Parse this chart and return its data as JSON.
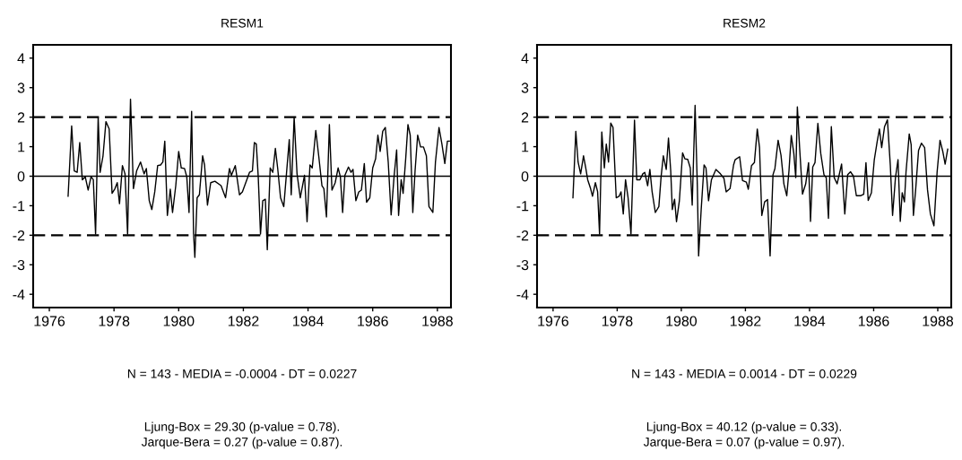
{
  "chart_data": [
    {
      "type": "line",
      "title": "RESM1",
      "xlim": [
        1975.5,
        1988.42
      ],
      "ylim": [
        -4.45,
        4.45
      ],
      "xticks": [
        1976,
        1978,
        1980,
        1982,
        1984,
        1986,
        1988
      ],
      "yticks": [
        -4,
        -3,
        -2,
        -1,
        0,
        1,
        2,
        3,
        4
      ],
      "grid": false,
      "ref_lines": [
        {
          "axis": "y",
          "value": 0,
          "label": null,
          "color": "#000000",
          "line_style": "solid"
        },
        {
          "axis": "y",
          "value": 2,
          "label": null,
          "color": "#000000",
          "line_style": "dashed"
        },
        {
          "axis": "y",
          "value": -2,
          "label": null,
          "color": "#000000",
          "line_style": "dashed"
        }
      ],
      "annotations": [
        "N = 143 - MEDIA = -0.0004 - DT = 0.0227",
        "Ljung-Box = 29.30 (p-value = 0.78).",
        "Jarque-Bera = 0.27 (p-value = 0.87)."
      ],
      "series": [
        {
          "color": "#000000",
          "line_style": "solid",
          "marker": "none",
          "x": [
            1976.58,
            1976.69,
            1976.77,
            1976.86,
            1976.94,
            1977.02,
            1977.11,
            1977.2,
            1977.29,
            1977.36,
            1977.43,
            1977.51,
            1977.57,
            1977.66,
            1977.75,
            1977.85,
            1977.94,
            1978.03,
            1978.1,
            1978.17,
            1978.26,
            1978.34,
            1978.42,
            1978.51,
            1978.6,
            1978.7,
            1978.82,
            1978.93,
            1979.0,
            1979.09,
            1979.17,
            1979.26,
            1979.35,
            1979.44,
            1979.51,
            1979.57,
            1979.65,
            1979.74,
            1979.81,
            1979.91,
            1980.0,
            1980.08,
            1980.18,
            1980.25,
            1980.32,
            1980.4,
            1980.46,
            1980.5,
            1980.57,
            1980.64,
            1980.74,
            1980.8,
            1980.89,
            1980.99,
            1981.12,
            1981.31,
            1981.45,
            1981.57,
            1981.63,
            1981.75,
            1981.88,
            1981.97,
            1982.19,
            1982.28,
            1982.34,
            1982.4,
            1982.46,
            1982.53,
            1982.6,
            1982.68,
            1982.74,
            1982.83,
            1982.91,
            1982.99,
            1983.06,
            1983.15,
            1983.25,
            1983.34,
            1983.42,
            1983.48,
            1983.57,
            1983.66,
            1983.76,
            1983.89,
            1983.97,
            1984.06,
            1984.13,
            1984.24,
            1984.33,
            1984.43,
            1984.49,
            1984.57,
            1984.66,
            1984.74,
            1984.84,
            1984.93,
            1985.0,
            1985.07,
            1985.14,
            1985.25,
            1985.33,
            1985.39,
            1985.48,
            1985.57,
            1985.65,
            1985.74,
            1985.81,
            1985.91,
            1986.0,
            1986.09,
            1986.16,
            1986.23,
            1986.31,
            1986.39,
            1986.48,
            1986.57,
            1986.66,
            1986.74,
            1986.8,
            1986.88,
            1986.94,
            1987.02,
            1987.09,
            1987.16,
            1987.24,
            1987.31,
            1987.39,
            1987.48,
            1987.57,
            1987.66,
            1987.74,
            1987.86,
            1987.94,
            1988.05,
            1988.14,
            1988.23,
            1988.31,
            1988.37
          ],
          "values": [
            -0.68,
            1.7,
            0.18,
            0.13,
            1.14,
            -0.12,
            -0.02,
            -0.47,
            -0.02,
            -0.12,
            -1.96,
            2.0,
            0.13,
            0.69,
            1.85,
            1.6,
            -0.58,
            -0.42,
            -0.22,
            -0.93,
            0.36,
            0.08,
            -1.96,
            2.61,
            -0.42,
            0.18,
            0.48,
            0.08,
            0.26,
            -0.83,
            -1.13,
            -0.53,
            0.36,
            0.38,
            0.48,
            1.19,
            -1.33,
            -0.44,
            -1.23,
            -0.32,
            0.84,
            0.28,
            0.26,
            -0.02,
            -1.23,
            2.2,
            -1.94,
            -2.75,
            -0.73,
            -0.63,
            0.69,
            0.38,
            -0.98,
            -0.22,
            -0.17,
            -0.32,
            -0.73,
            0.26,
            0.03,
            0.36,
            -0.63,
            -0.53,
            0.13,
            0.18,
            1.14,
            1.09,
            -0.02,
            -1.96,
            -0.83,
            -0.78,
            -2.49,
            0.28,
            0.13,
            0.94,
            0.28,
            -0.73,
            -1.03,
            0.18,
            1.24,
            -0.63,
            2.0,
            0.08,
            -0.73,
            0.03,
            -1.54,
            0.38,
            0.28,
            1.55,
            0.69,
            -0.32,
            -0.42,
            -1.38,
            1.75,
            -0.47,
            -0.22,
            0.28,
            -0.02,
            -1.23,
            0.03,
            0.31,
            0.13,
            0.23,
            -0.83,
            -0.53,
            -0.47,
            0.43,
            -0.88,
            -0.73,
            0.28,
            0.59,
            1.39,
            0.84,
            1.52,
            1.65,
            0.48,
            -1.31,
            -0.02,
            0.89,
            -1.33,
            -0.12,
            -0.58,
            0.59,
            1.75,
            1.39,
            -1.23,
            0.18,
            1.39,
            0.99,
            0.99,
            0.69,
            -1.03,
            -1.23,
            0.48,
            1.65,
            1.09,
            0.43,
            1.19,
            1.19
          ]
        }
      ]
    },
    {
      "type": "line",
      "title": "RESM2",
      "xlim": [
        1975.5,
        1988.42
      ],
      "ylim": [
        -4.45,
        4.45
      ],
      "xticks": [
        1976,
        1978,
        1980,
        1982,
        1984,
        1986,
        1988
      ],
      "yticks": [
        -4,
        -3,
        -2,
        -1,
        0,
        1,
        2,
        3,
        4
      ],
      "grid": false,
      "ref_lines": [
        {
          "axis": "y",
          "value": 0,
          "label": null,
          "color": "#000000",
          "line_style": "solid"
        },
        {
          "axis": "y",
          "value": 2,
          "label": null,
          "color": "#000000",
          "line_style": "dashed"
        },
        {
          "axis": "y",
          "value": -2,
          "label": null,
          "color": "#000000",
          "line_style": "dashed"
        }
      ],
      "annotations": [
        "N = 143 - MEDIA = 0.0014 - DT = 0.0229",
        "Ljung-Box = 40.12 (p-value = 0.33).",
        "Jarque-Bera = 0.07 (p-value = 0.97)."
      ],
      "series": [
        {
          "color": "#000000",
          "line_style": "solid",
          "marker": "none",
          "x": [
            1976.62,
            1976.71,
            1976.78,
            1976.86,
            1976.95,
            1977.02,
            1977.08,
            1977.17,
            1977.23,
            1977.32,
            1977.39,
            1977.45,
            1977.52,
            1977.6,
            1977.66,
            1977.73,
            1977.8,
            1977.87,
            1977.97,
            1978.06,
            1978.12,
            1978.19,
            1978.26,
            1978.34,
            1978.43,
            1978.54,
            1978.61,
            1978.71,
            1978.8,
            1978.86,
            1978.95,
            1979.02,
            1979.09,
            1979.19,
            1979.3,
            1979.37,
            1979.44,
            1979.53,
            1979.6,
            1979.67,
            1979.72,
            1979.79,
            1979.85,
            1979.94,
            1980.04,
            1980.11,
            1980.2,
            1980.28,
            1980.34,
            1980.43,
            1980.5,
            1980.54,
            1980.62,
            1980.71,
            1980.77,
            1980.85,
            1980.94,
            1981.08,
            1981.22,
            1981.33,
            1981.4,
            1981.52,
            1981.63,
            1981.68,
            1981.82,
            1981.91,
            1982.03,
            1982.09,
            1982.19,
            1982.28,
            1982.37,
            1982.44,
            1982.51,
            1982.6,
            1982.69,
            1982.77,
            1982.86,
            1982.92,
            1983.02,
            1983.11,
            1983.2,
            1983.29,
            1983.36,
            1983.43,
            1983.51,
            1983.57,
            1983.62,
            1983.69,
            1983.78,
            1983.88,
            1983.97,
            1984.03,
            1984.1,
            1984.17,
            1984.26,
            1984.35,
            1984.45,
            1984.52,
            1984.59,
            1984.68,
            1984.77,
            1984.86,
            1985.0,
            1985.1,
            1985.19,
            1985.28,
            1985.37,
            1985.46,
            1985.6,
            1985.69,
            1985.76,
            1985.83,
            1985.93,
            1986.02,
            1986.11,
            1986.18,
            1986.25,
            1986.34,
            1986.43,
            1986.52,
            1986.59,
            1986.68,
            1986.76,
            1986.83,
            1986.89,
            1986.96,
            1987.01,
            1987.11,
            1987.17,
            1987.24,
            1987.31,
            1987.4,
            1987.49,
            1987.59,
            1987.68,
            1987.77,
            1987.88,
            1987.98,
            1988.07,
            1988.16,
            1988.23,
            1988.31
          ],
          "values": [
            -0.73,
            1.52,
            0.48,
            0.08,
            0.69,
            0.28,
            -0.12,
            -0.42,
            -0.68,
            -0.22,
            -0.53,
            -1.96,
            1.5,
            0.28,
            1.09,
            0.48,
            1.8,
            1.65,
            -0.73,
            -0.68,
            -0.53,
            -1.28,
            -0.12,
            -0.73,
            -1.96,
            1.9,
            -0.12,
            -0.12,
            0.08,
            0.13,
            -0.32,
            0.23,
            -0.53,
            -1.23,
            -1.03,
            -0.02,
            0.69,
            0.23,
            1.29,
            0.18,
            -1.13,
            -0.78,
            -1.54,
            -0.83,
            0.79,
            0.59,
            0.57,
            0.28,
            -0.98,
            2.4,
            -0.32,
            -2.7,
            -1.13,
            0.38,
            0.28,
            -0.83,
            -0.12,
            0.23,
            0.08,
            -0.07,
            -0.53,
            -0.42,
            0.38,
            0.56,
            0.66,
            -0.15,
            -0.2,
            -0.44,
            0.36,
            0.46,
            1.6,
            0.97,
            -1.33,
            -0.87,
            -0.79,
            -2.7,
            0.05,
            0.26,
            1.22,
            0.71,
            -0.26,
            -0.66,
            0.2,
            1.38,
            0.77,
            -0.05,
            2.35,
            0.97,
            -0.61,
            -0.26,
            0.46,
            -1.53,
            0.31,
            0.46,
            1.79,
            0.77,
            0.05,
            -0.05,
            -1.43,
            1.68,
            -0.05,
            -0.26,
            0.41,
            -1.28,
            0.05,
            0.15,
            0.0,
            -0.66,
            -0.66,
            -0.61,
            0.46,
            -0.82,
            -0.56,
            0.56,
            1.17,
            1.6,
            0.97,
            1.68,
            1.91,
            0.36,
            -1.33,
            -0.05,
            0.56,
            -1.53,
            -0.56,
            -0.87,
            0.15,
            1.43,
            1.07,
            -1.33,
            -0.46,
            0.87,
            1.12,
            0.97,
            -0.46,
            -1.28,
            -1.68,
            0.15,
            1.22,
            0.82,
            0.41,
            0.92
          ]
        }
      ]
    }
  ]
}
